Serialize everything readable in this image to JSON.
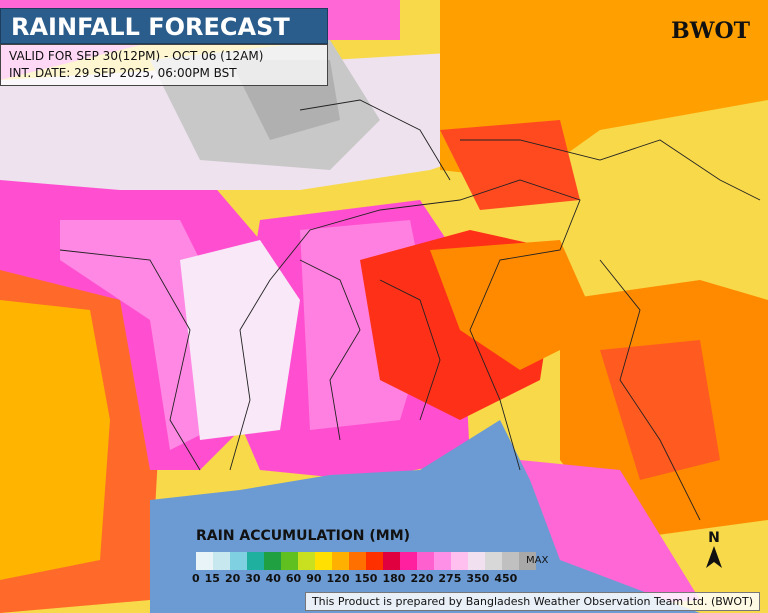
{
  "header": {
    "title": "RAINFALL FORECAST",
    "valid": "VALID FOR SEP 30(12PM) - OCT 06 (12AM)",
    "init": "INT. DATE: 29 SEP 2025, 06:00PM BST"
  },
  "logo": {
    "text": "BWOT"
  },
  "legend": {
    "title": "RAIN ACCUMULATION (MM)",
    "max_label": "MAX",
    "ticks": [
      "0",
      "15",
      "20",
      "30",
      "40",
      "60",
      "90",
      "120",
      "150",
      "180",
      "220",
      "275",
      "350",
      "450"
    ],
    "colors": [
      "#e8f4f8",
      "#c8e8f0",
      "#7fd0e0",
      "#20b0a0",
      "#20a040",
      "#60c020",
      "#c8e020",
      "#ffe000",
      "#ffb000",
      "#ff7000",
      "#ff3000",
      "#e00040",
      "#ff20a0",
      "#ff60d0",
      "#ff90e8",
      "#ffc0f0",
      "#f0e0f0",
      "#d8d8d8",
      "#c0c0c0",
      "#a8a8a8"
    ]
  },
  "compass": {
    "label": "N"
  },
  "footer": {
    "text": "This Product is prepared by Bangladesh Weather Observation Team Ltd. (BWOT)"
  }
}
